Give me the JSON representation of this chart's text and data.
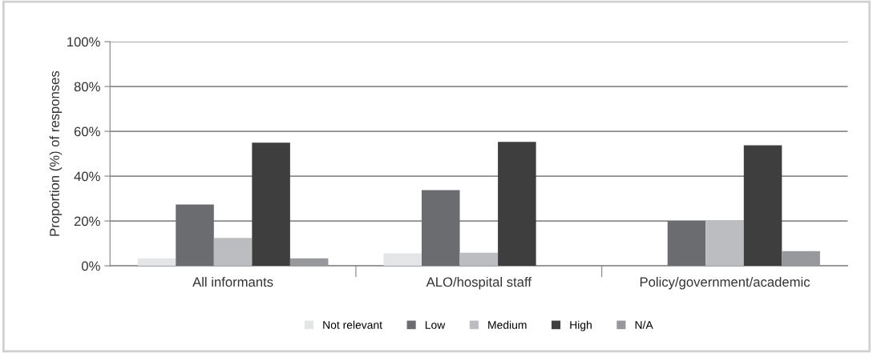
{
  "chart_data": {
    "type": "bar",
    "ylabel": "Proportion (%) of responses",
    "categories": [
      "All informants",
      "ALO/hospital staff",
      "Policy/government/academic"
    ],
    "series": [
      {
        "name": "Not relevant",
        "color": "#e4e5e7",
        "values": [
          3.3,
          5.6,
          0
        ]
      },
      {
        "name": "Low",
        "color": "#6b6c70",
        "values": [
          27.3,
          33.8,
          20
        ]
      },
      {
        "name": "Medium",
        "color": "#bcbdc0",
        "values": [
          12.4,
          5.8,
          20.4
        ]
      },
      {
        "name": "High",
        "color": "#3e3e3e",
        "values": [
          54.9,
          55.3,
          53.8
        ]
      },
      {
        "name": "N/A",
        "color": "#97989b",
        "values": [
          3.3,
          0,
          6.5
        ]
      }
    ],
    "ylim": [
      0,
      100
    ],
    "yticks": [
      {
        "value": 0,
        "label": "0%"
      },
      {
        "value": 20,
        "label": "20%"
      },
      {
        "value": 40,
        "label": "40%"
      },
      {
        "value": 60,
        "label": "60%"
      },
      {
        "value": 80,
        "label": "80%"
      },
      {
        "value": 100,
        "label": "100%"
      }
    ],
    "grid": "y",
    "legend": "bottom"
  }
}
